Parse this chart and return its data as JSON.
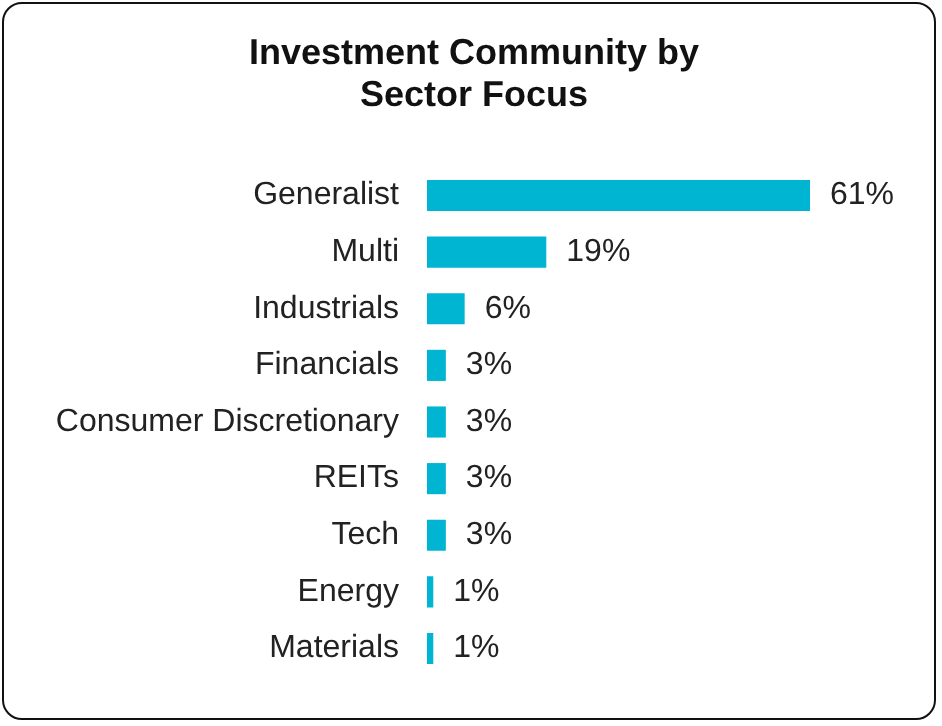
{
  "chart_data": {
    "type": "bar",
    "orientation": "horizontal",
    "title": "Investment Community by Sector Focus",
    "categories": [
      "Generalist",
      "Multi",
      "Industrials",
      "Financials",
      "Consumer Discretionary",
      "REITs",
      "Tech",
      "Energy",
      "Materials"
    ],
    "values": [
      61,
      19,
      6,
      3,
      3,
      3,
      3,
      1,
      1
    ],
    "value_labels": [
      "61%",
      "19%",
      "6%",
      "3%",
      "3%",
      "3%",
      "3%",
      "1%",
      "1%"
    ],
    "color": "#00b5d1",
    "tick_labels": "y"
  }
}
